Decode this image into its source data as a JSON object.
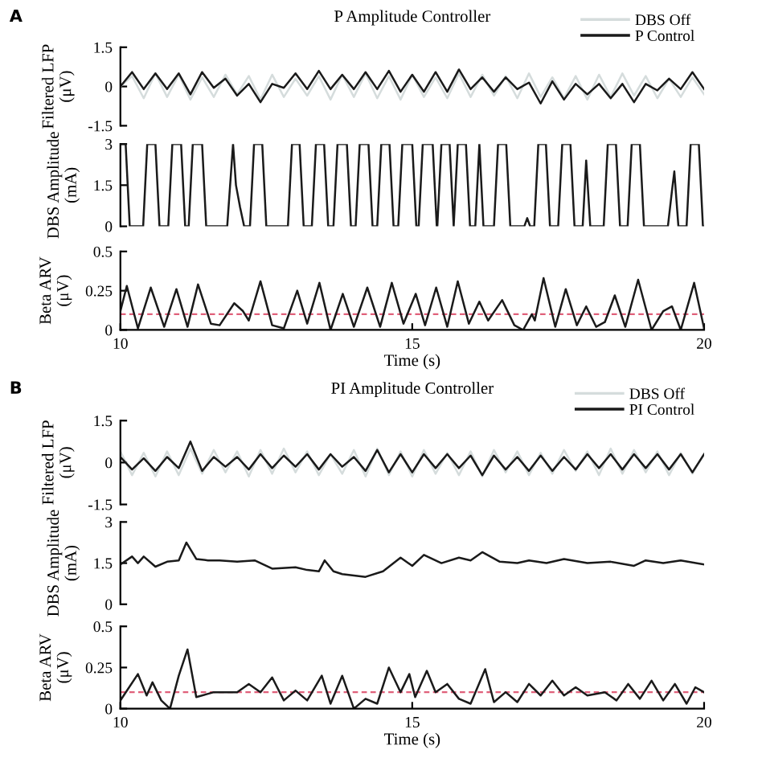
{
  "chart_data": [
    {
      "type": "line",
      "title": "P Amplitude Controller",
      "annotations": [
        "A"
      ],
      "ylabel": "Filtered LFP\n(μV)",
      "xlim": [
        10,
        20
      ],
      "ylim": [
        -1.5,
        1.5
      ],
      "yticks": [
        -1.5,
        0,
        1.5
      ],
      "tick_labels": "y",
      "legend": "top right",
      "x": [
        10.0,
        10.2,
        10.4,
        10.6,
        10.8,
        11.0,
        11.2,
        11.4,
        11.6,
        11.8,
        12.0,
        12.2,
        12.4,
        12.6,
        12.8,
        13.0,
        13.2,
        13.4,
        13.6,
        13.8,
        14.0,
        14.2,
        14.4,
        14.6,
        14.8,
        15.0,
        15.2,
        15.4,
        15.6,
        15.8,
        16.0,
        16.2,
        16.4,
        16.6,
        16.8,
        17.0,
        17.2,
        17.4,
        17.6,
        17.8,
        18.0,
        18.2,
        18.4,
        18.6,
        18.8,
        19.0,
        19.2,
        19.4,
        19.6,
        19.8,
        20.0
      ],
      "series": [
        {
          "name": "DBS Off",
          "color": "#d5dcdc",
          "values": [
            0,
            0.4,
            -0.45,
            0.5,
            -0.4,
            0.45,
            -0.5,
            0.35,
            -0.4,
            0.45,
            -0.3,
            0.4,
            -0.5,
            0.45,
            -0.4,
            0.3,
            -0.35,
            0.4,
            -0.5,
            0.45,
            -0.4,
            0.5,
            -0.45,
            0.4,
            -0.5,
            0.45,
            -0.4,
            0.35,
            -0.45,
            0.5,
            -0.4,
            0.45,
            -0.35,
            0.4,
            -0.45,
            0.5,
            -0.4,
            0.35,
            -0.45,
            0.4,
            -0.5,
            0.45,
            -0.4,
            0.5,
            -0.35,
            0.4,
            -0.45,
            0.3,
            -0.4,
            0.35,
            -0.3
          ]
        },
        {
          "name": "P Control",
          "color": "#1a1a1a",
          "values": [
            0,
            0.55,
            -0.1,
            0.5,
            -0.1,
            0.5,
            -0.3,
            0.55,
            -0.05,
            0.3,
            -0.35,
            0.1,
            -0.6,
            0.1,
            -0.05,
            0.5,
            -0.1,
            0.6,
            -0.1,
            0.45,
            -0.1,
            0.55,
            -0.1,
            0.6,
            -0.2,
            0.45,
            -0.2,
            0.55,
            -0.2,
            0.65,
            -0.1,
            0.35,
            -0.2,
            0.35,
            -0.1,
            0.15,
            -0.65,
            0.2,
            -0.5,
            0.1,
            -0.3,
            0.1,
            -0.45,
            0.1,
            -0.6,
            0.1,
            -0.15,
            0.3,
            -0.1,
            0.55,
            -0.1
          ]
        }
      ]
    },
    {
      "type": "line",
      "ylabel": "DBS Amplitude\n(mA)",
      "xlim": [
        10,
        20
      ],
      "ylim": [
        0,
        3
      ],
      "yticks": [
        0,
        1.5,
        3
      ],
      "tick_labels": "y",
      "x": [
        10.0,
        10.09,
        10.16,
        10.39,
        10.46,
        10.6,
        10.67,
        10.82,
        10.89,
        11.04,
        11.11,
        11.17,
        11.24,
        11.4,
        11.47,
        11.83,
        11.93,
        11.98,
        12.05,
        12.12,
        12.22,
        12.29,
        12.43,
        12.5,
        12.87,
        12.94,
        13.07,
        13.14,
        13.28,
        13.35,
        13.49,
        13.56,
        13.65,
        13.72,
        13.88,
        13.95,
        14.03,
        14.1,
        14.25,
        14.32,
        14.4,
        14.47,
        14.61,
        14.68,
        14.76,
        14.83,
        15.0,
        15.07,
        15.11,
        15.18,
        15.35,
        15.42,
        15.43,
        15.5,
        15.64,
        15.71,
        15.78,
        15.92,
        15.99,
        16.08,
        16.15,
        16.22,
        16.4,
        16.47,
        16.61,
        16.68,
        16.92,
        16.97,
        17.02,
        17.09,
        17.16,
        17.29,
        17.36,
        17.5,
        17.57,
        17.71,
        17.78,
        17.92,
        17.98,
        18.05,
        18.28,
        18.35,
        18.49,
        18.56,
        18.69,
        18.76,
        18.9,
        18.97,
        19.38,
        19.45,
        19.49,
        19.56,
        19.7,
        19.77,
        19.91,
        19.98,
        20.0
      ],
      "series": [
        {
          "color": "#1a1a1a",
          "values": [
            3,
            3,
            0,
            0,
            3,
            3,
            0,
            0,
            3,
            3,
            0,
            0,
            3,
            3,
            0,
            0,
            3,
            1.5,
            0.7,
            0,
            0,
            3,
            3,
            0,
            0,
            3,
            3,
            0,
            0,
            3,
            3,
            0,
            0,
            3,
            3,
            0,
            0,
            3,
            3,
            0,
            0,
            3,
            3,
            0,
            0,
            3,
            3,
            0,
            0,
            3,
            3,
            0,
            0,
            3,
            3,
            0,
            3,
            3,
            0,
            0,
            3,
            0,
            0,
            3,
            3,
            0,
            0,
            0.3,
            0,
            0,
            3,
            3,
            0,
            0,
            3,
            3,
            0,
            0,
            2.4,
            0,
            0,
            3,
            3,
            0,
            0,
            3,
            3,
            0,
            0,
            1.3,
            2.0,
            0,
            0,
            3,
            3,
            0,
            0
          ]
        }
      ]
    },
    {
      "type": "line",
      "ylabel": "Beta ARV\n(μV)",
      "xlabel": "Time (s)",
      "xlim": [
        10,
        20
      ],
      "xticks": [
        10,
        15,
        20
      ],
      "ylim": [
        0,
        0.5
      ],
      "yticks": [
        0,
        0.25,
        0.5
      ],
      "ref_lines": [
        {
          "axis": "y",
          "value": 0.1,
          "color": "#e0607a",
          "line_style": "dashed"
        }
      ],
      "x": [
        10.0,
        10.11,
        10.3,
        10.52,
        10.75,
        10.96,
        11.15,
        11.33,
        11.55,
        11.7,
        11.95,
        12.1,
        12.2,
        12.4,
        12.6,
        12.8,
        13.03,
        13.2,
        13.41,
        13.6,
        13.81,
        14.0,
        14.23,
        14.45,
        14.65,
        14.85,
        15.06,
        15.22,
        15.41,
        15.6,
        15.78,
        15.97,
        16.15,
        16.3,
        16.54,
        16.75,
        16.9,
        17.05,
        17.1,
        17.25,
        17.45,
        17.63,
        17.82,
        17.98,
        18.15,
        18.3,
        18.47,
        18.65,
        18.87,
        19.1,
        19.3,
        19.45,
        19.6,
        19.83,
        20.0
      ],
      "series": [
        {
          "color": "#1a1a1a",
          "values": [
            0.12,
            0.28,
            0.01,
            0.27,
            0.02,
            0.26,
            0.02,
            0.29,
            0.04,
            0.03,
            0.17,
            0.12,
            0.06,
            0.31,
            0.03,
            0.01,
            0.25,
            0.04,
            0.3,
            0.0,
            0.23,
            0.02,
            0.27,
            0.02,
            0.3,
            0.04,
            0.23,
            0.03,
            0.27,
            0.02,
            0.31,
            0.04,
            0.18,
            0.06,
            0.19,
            0.03,
            0.0,
            0.1,
            0.06,
            0.33,
            0.02,
            0.26,
            0.03,
            0.15,
            0.02,
            0.05,
            0.22,
            0.02,
            0.32,
            0.0,
            0.12,
            0.15,
            0.0,
            0.3,
            0.01
          ]
        }
      ]
    },
    {
      "type": "line",
      "title": "PI Amplitude Controller",
      "annotations": [
        "B"
      ],
      "ylabel": "Filtered LFP\n(μV)",
      "xlim": [
        10,
        20
      ],
      "ylim": [
        -1.5,
        1.5
      ],
      "yticks": [
        -1.5,
        0,
        1.5
      ],
      "tick_labels": "y",
      "legend": "top right",
      "x": [
        10.0,
        10.2,
        10.4,
        10.6,
        10.8,
        11.0,
        11.2,
        11.4,
        11.6,
        11.8,
        12.0,
        12.2,
        12.4,
        12.6,
        12.8,
        13.0,
        13.2,
        13.4,
        13.6,
        13.8,
        14.0,
        14.2,
        14.4,
        14.6,
        14.8,
        15.0,
        15.2,
        15.4,
        15.6,
        15.8,
        16.0,
        16.2,
        16.4,
        16.6,
        16.8,
        17.0,
        17.2,
        17.4,
        17.6,
        17.8,
        18.0,
        18.2,
        18.4,
        18.6,
        18.8,
        19.0,
        19.2,
        19.4,
        19.6,
        19.8,
        20.0
      ],
      "series": [
        {
          "name": "DBS Off",
          "color": "#d5dcdc",
          "values": [
            0.4,
            -0.45,
            0.35,
            -0.5,
            0.4,
            -0.45,
            0.5,
            -0.4,
            0.45,
            -0.35,
            0.4,
            -0.5,
            0.45,
            -0.4,
            0.5,
            -0.35,
            0.4,
            -0.45,
            0.3,
            -0.4,
            0.45,
            -0.5,
            0.5,
            -0.45,
            0.4,
            -0.5,
            0.45,
            -0.4,
            0.35,
            -0.45,
            0.4,
            -0.5,
            0.45,
            -0.35,
            0.4,
            -0.45,
            0.35,
            -0.4,
            0.45,
            -0.3,
            0.4,
            -0.45,
            0.5,
            -0.4,
            0.45,
            -0.35,
            0.4,
            -0.45,
            0.35,
            -0.4,
            0.3
          ]
        },
        {
          "name": "PI Control",
          "color": "#1a1a1a",
          "values": [
            0.2,
            -0.25,
            0.15,
            -0.3,
            0.2,
            -0.2,
            0.75,
            -0.3,
            0.2,
            -0.15,
            0.2,
            -0.25,
            0.3,
            -0.2,
            0.25,
            -0.15,
            0.3,
            -0.25,
            0.3,
            -0.15,
            0.2,
            -0.3,
            0.45,
            -0.35,
            0.3,
            -0.35,
            0.3,
            -0.2,
            0.3,
            -0.2,
            0.25,
            -0.45,
            0.25,
            -0.25,
            0.2,
            -0.3,
            0.25,
            -0.3,
            0.2,
            -0.25,
            0.3,
            -0.2,
            0.3,
            -0.25,
            0.3,
            -0.2,
            0.3,
            -0.25,
            0.3,
            -0.35,
            0.3
          ]
        }
      ]
    },
    {
      "type": "line",
      "ylabel": "DBS Amplitude\n(mA)",
      "xlim": [
        10,
        20
      ],
      "ylim": [
        0,
        3
      ],
      "yticks": [
        0,
        1.5,
        3
      ],
      "tick_labels": "y",
      "x": [
        10.0,
        10.2,
        10.3,
        10.4,
        10.6,
        10.8,
        11.0,
        11.13,
        11.3,
        11.5,
        11.7,
        12.0,
        12.3,
        12.6,
        13.0,
        13.2,
        13.4,
        13.5,
        13.65,
        13.8,
        14.0,
        14.2,
        14.5,
        14.8,
        15.0,
        15.2,
        15.5,
        15.8,
        16.0,
        16.2,
        16.5,
        16.8,
        17.0,
        17.3,
        17.6,
        18.0,
        18.4,
        18.8,
        19.0,
        19.3,
        19.6,
        20.0
      ],
      "series": [
        {
          "color": "#1a1a1a",
          "values": [
            1.45,
            1.74,
            1.5,
            1.74,
            1.37,
            1.55,
            1.6,
            2.25,
            1.65,
            1.6,
            1.6,
            1.55,
            1.6,
            1.3,
            1.35,
            1.25,
            1.2,
            1.6,
            1.2,
            1.1,
            1.05,
            1.0,
            1.2,
            1.7,
            1.4,
            1.8,
            1.5,
            1.7,
            1.6,
            1.9,
            1.55,
            1.5,
            1.6,
            1.5,
            1.65,
            1.5,
            1.55,
            1.4,
            1.6,
            1.5,
            1.6,
            1.45
          ]
        }
      ]
    },
    {
      "type": "line",
      "ylabel": "Beta ARV\n(μV)",
      "xlabel": "Time (s)",
      "xlim": [
        10,
        20
      ],
      "xticks": [
        10,
        15,
        20
      ],
      "ylim": [
        0,
        0.5
      ],
      "yticks": [
        0,
        0.25,
        0.5
      ],
      "ref_lines": [
        {
          "axis": "y",
          "value": 0.1,
          "color": "#e0607a",
          "line_style": "dashed"
        }
      ],
      "x": [
        10.0,
        10.3,
        10.45,
        10.55,
        10.7,
        10.85,
        11.0,
        11.15,
        11.3,
        11.6,
        12.0,
        12.2,
        12.4,
        12.6,
        12.8,
        13.0,
        13.2,
        13.45,
        13.6,
        13.8,
        14.0,
        14.2,
        14.4,
        14.6,
        14.8,
        14.95,
        15.05,
        15.25,
        15.4,
        15.6,
        15.8,
        16.0,
        16.25,
        16.4,
        16.6,
        16.8,
        17.0,
        17.2,
        17.4,
        17.6,
        17.8,
        18.0,
        18.3,
        18.5,
        18.7,
        18.9,
        19.1,
        19.3,
        19.5,
        19.7,
        19.85,
        20.0
      ],
      "series": [
        {
          "color": "#1a1a1a",
          "values": [
            0.05,
            0.21,
            0.08,
            0.16,
            0.05,
            0.0,
            0.2,
            0.36,
            0.07,
            0.1,
            0.1,
            0.15,
            0.1,
            0.19,
            0.05,
            0.11,
            0.05,
            0.2,
            0.03,
            0.2,
            0.0,
            0.06,
            0.03,
            0.25,
            0.1,
            0.21,
            0.07,
            0.23,
            0.1,
            0.15,
            0.06,
            0.03,
            0.24,
            0.04,
            0.1,
            0.04,
            0.15,
            0.08,
            0.17,
            0.08,
            0.13,
            0.08,
            0.1,
            0.05,
            0.15,
            0.06,
            0.17,
            0.05,
            0.15,
            0.03,
            0.13,
            0.1
          ]
        }
      ]
    }
  ]
}
